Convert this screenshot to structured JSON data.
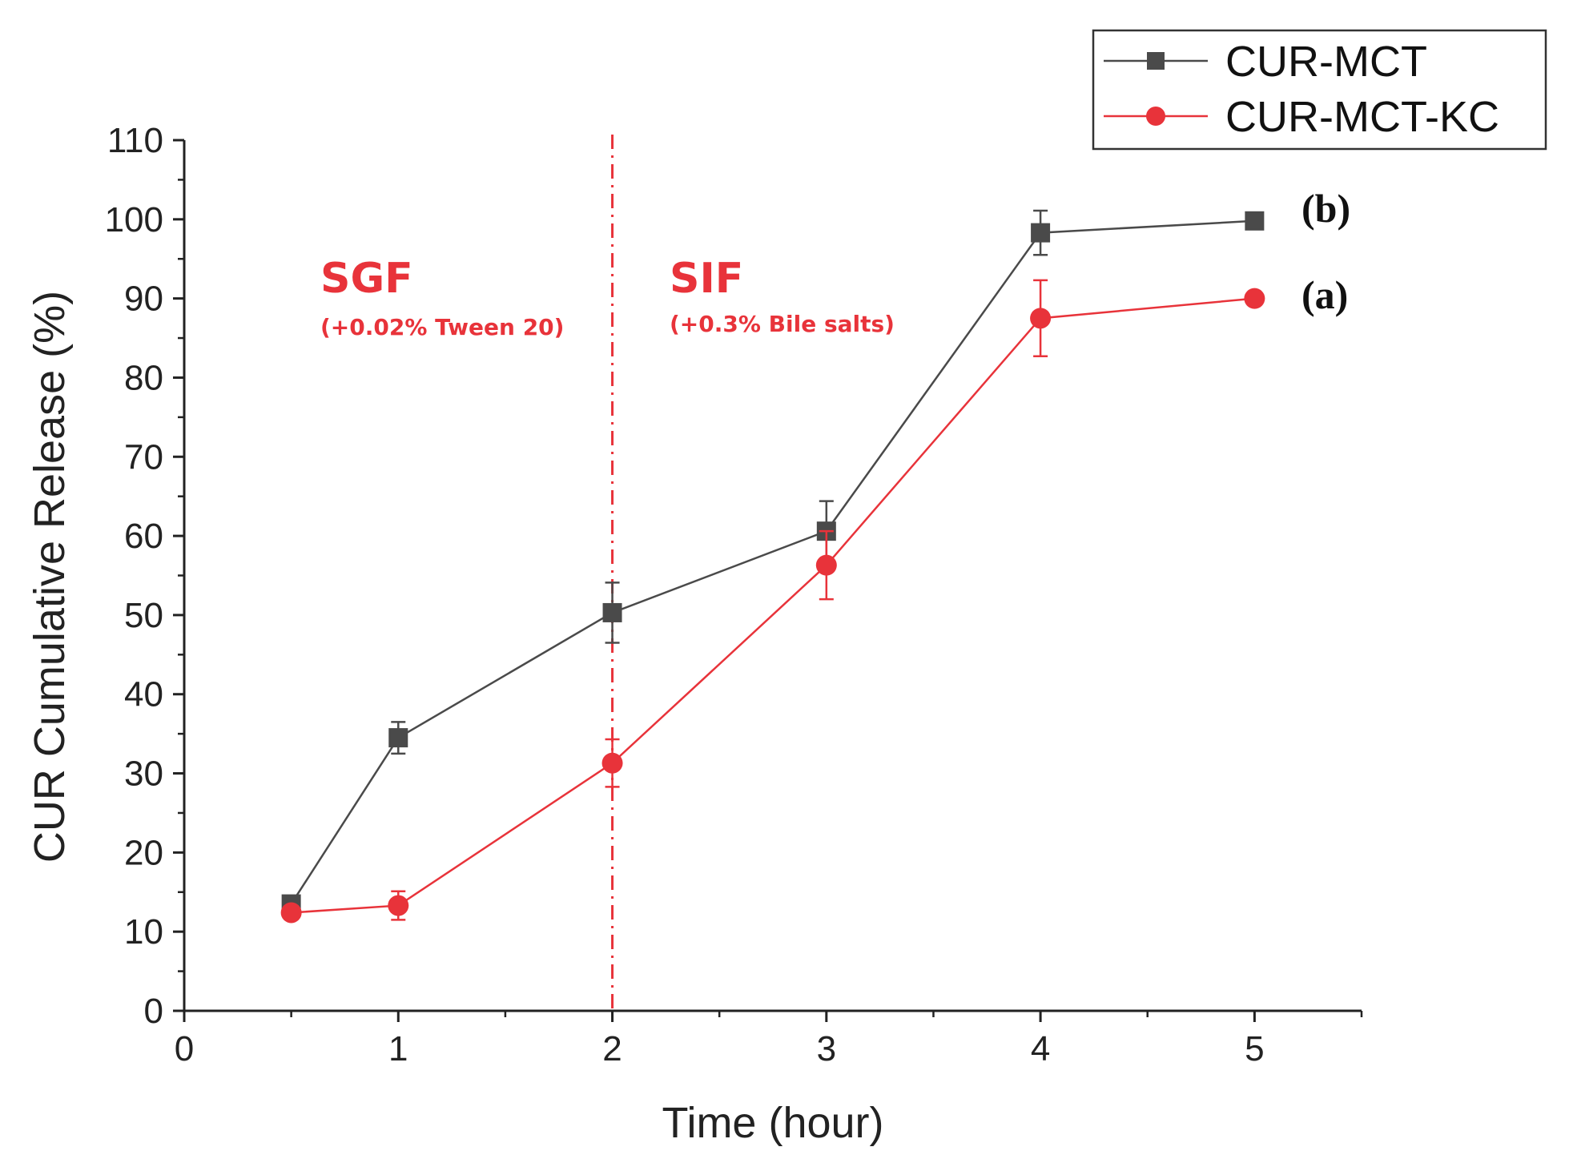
{
  "chart_data": {
    "type": "line",
    "title": "",
    "xlabel": "Time (hour)",
    "ylabel": "CUR Cumulative Release (%)",
    "xlim": [
      0,
      5.5
    ],
    "ylim": [
      0,
      110
    ],
    "xticks": [
      0,
      1,
      2,
      3,
      4,
      5
    ],
    "yticks": [
      0,
      10,
      20,
      30,
      40,
      50,
      60,
      70,
      80,
      90,
      100,
      110
    ],
    "grid": false,
    "legend_position": "top-right",
    "series": [
      {
        "name": "CUR-MCT",
        "color": "#4a4a4a",
        "marker": "square",
        "x": [
          0.5,
          1,
          2,
          3,
          4,
          5
        ],
        "y": [
          13.5,
          34.5,
          50.3,
          60.6,
          98.3,
          99.8
        ],
        "error": [
          0.8,
          2.0,
          3.8,
          3.8,
          2.8,
          0.5
        ],
        "label": "(b)"
      },
      {
        "name": "CUR-MCT-KC",
        "color": "#e8333a",
        "marker": "circle",
        "x": [
          0.5,
          1,
          2,
          3,
          4,
          5
        ],
        "y": [
          12.4,
          13.3,
          31.3,
          56.3,
          87.5,
          90.0
        ],
        "error": [
          0.8,
          1.8,
          3.0,
          4.3,
          4.8,
          0.5
        ],
        "label": "(a)"
      }
    ],
    "annotations": {
      "divider_x": 2,
      "divider_color": "#e8333a",
      "regions": [
        {
          "title": "SGF",
          "subtitle": "(+0.02% Tween 20)",
          "color": "#e8333a"
        },
        {
          "title": "SIF",
          "subtitle": "(+0.3% Bile salts)",
          "color": "#e8333a"
        }
      ]
    }
  }
}
